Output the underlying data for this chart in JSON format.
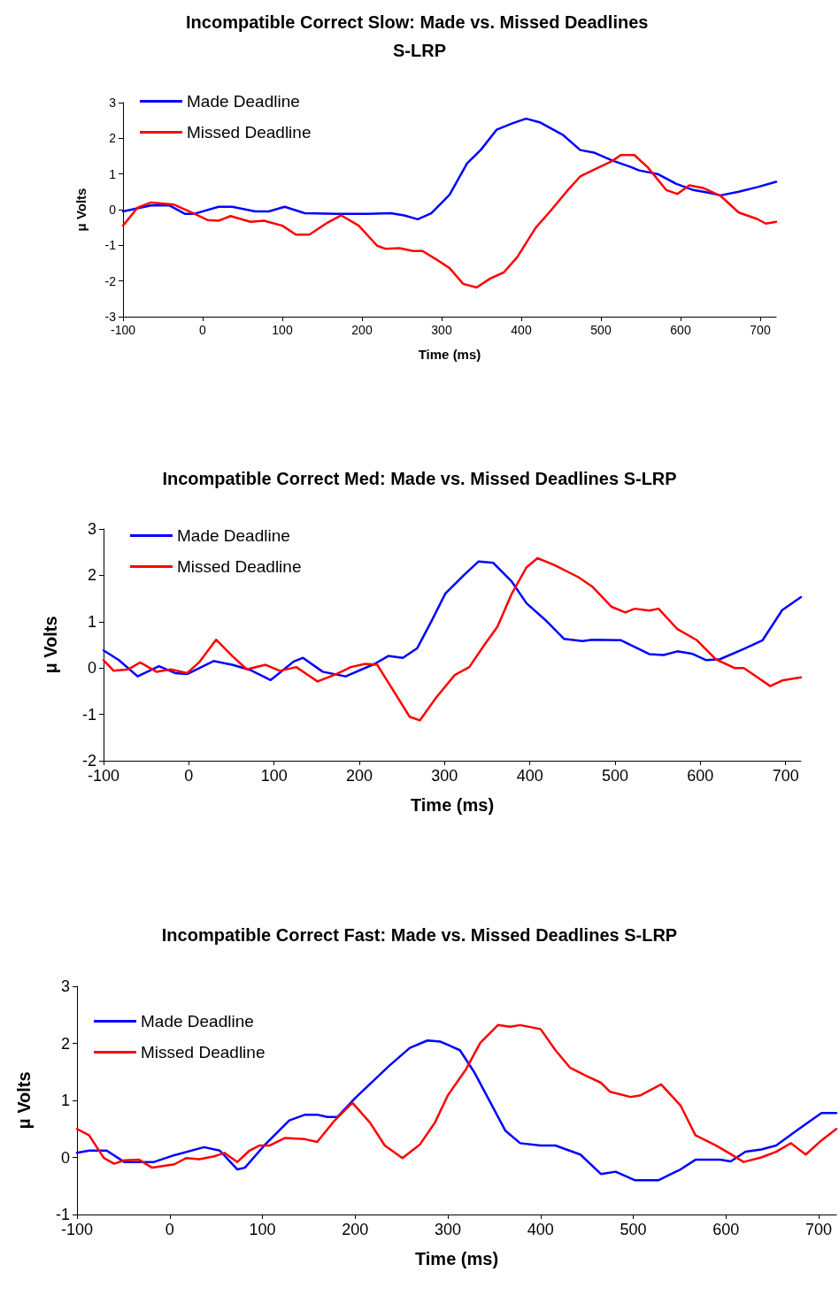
{
  "chart_data": [
    {
      "type": "line",
      "title": "Incompatible Correct Slow: Made vs. Missed Deadlines S-LRP",
      "xlabel": "Time (ms)",
      "ylabel": "μ Volts",
      "xlim": [
        -100,
        720
      ],
      "xticks": [
        -100,
        0,
        100,
        200,
        300,
        400,
        500,
        600,
        700
      ],
      "ylim": [
        -3,
        3
      ],
      "yticks": [
        -3,
        -2,
        -1,
        0,
        1,
        2,
        3
      ],
      "grid": false,
      "legend": "top left",
      "marker": "none",
      "line_style": "solid",
      "series": [
        {
          "name": "Made Deadline",
          "color": "#0000ff",
          "x": [
            -100,
            -65,
            -42,
            -22,
            -11,
            20,
            37,
            66,
            83,
            103,
            128,
            168,
            208,
            236,
            253,
            270,
            287,
            310,
            332,
            349,
            369,
            389,
            406,
            423,
            452,
            474,
            491,
            514,
            537,
            548,
            571,
            594,
            616,
            639,
            650,
            673,
            696,
            720
          ],
          "values": [
            -0.05,
            0.12,
            0.12,
            -0.12,
            -0.12,
            0.08,
            0.08,
            -0.05,
            -0.05,
            0.08,
            -0.1,
            -0.12,
            -0.12,
            -0.1,
            -0.16,
            -0.27,
            -0.1,
            0.42,
            1.3,
            1.67,
            2.24,
            2.42,
            2.55,
            2.45,
            2.1,
            1.67,
            1.6,
            1.38,
            1.2,
            1.1,
            1.0,
            0.73,
            0.55,
            0.46,
            0.4,
            0.5,
            0.63,
            0.78
          ]
        },
        {
          "name": "Missed Deadline",
          "color": "#ff0000",
          "x": [
            -100,
            -82,
            -65,
            -36,
            -14,
            6,
            20,
            35,
            60,
            77,
            100,
            117,
            134,
            157,
            174,
            196,
            219,
            230,
            247,
            264,
            276,
            293,
            310,
            327,
            344,
            361,
            378,
            395,
            418,
            435,
            457,
            474,
            497,
            514,
            525,
            542,
            559,
            582,
            596,
            611,
            628,
            650,
            673,
            696,
            707,
            720
          ],
          "values": [
            -0.45,
            0.05,
            0.2,
            0.14,
            -0.08,
            -0.29,
            -0.31,
            -0.18,
            -0.34,
            -0.31,
            -0.45,
            -0.7,
            -0.7,
            -0.36,
            -0.16,
            -0.45,
            -1.01,
            -1.1,
            -1.08,
            -1.16,
            -1.16,
            -1.39,
            -1.64,
            -2.08,
            -2.18,
            -1.93,
            -1.76,
            -1.33,
            -0.51,
            -0.08,
            0.51,
            0.93,
            1.18,
            1.36,
            1.53,
            1.53,
            1.18,
            0.55,
            0.44,
            0.68,
            0.61,
            0.39,
            -0.08,
            -0.26,
            -0.39,
            -0.34
          ]
        }
      ]
    },
    {
      "type": "line",
      "title": "Incompatible Correct Med: Made vs. Missed Deadlines S-LRP",
      "xlabel": "Time (ms)",
      "ylabel": "μ Volts",
      "xlim": [
        -100,
        718
      ],
      "xticks": [
        -100,
        0,
        100,
        200,
        300,
        400,
        500,
        600,
        700
      ],
      "ylim": [
        -2,
        3
      ],
      "yticks": [
        -2,
        -1,
        0,
        1,
        2,
        3
      ],
      "grid": false,
      "legend": "top left",
      "marker": "none",
      "line_style": "solid",
      "series": [
        {
          "name": "Made Deadline",
          "color": "#0000ff",
          "x": [
            -100,
            -82,
            -60,
            -35,
            -16,
            -2,
            29,
            51,
            73,
            96,
            123,
            134,
            157,
            184,
            218,
            234,
            251,
            268,
            284,
            301,
            323,
            340,
            357,
            379,
            396,
            418,
            440,
            462,
            473,
            507,
            540,
            557,
            573,
            590,
            607,
            623,
            651,
            673,
            696,
            718
          ],
          "values": [
            0.38,
            0.17,
            -0.18,
            0.04,
            -0.11,
            -0.13,
            0.15,
            0.07,
            -0.05,
            -0.26,
            0.14,
            0.22,
            -0.08,
            -0.18,
            0.09,
            0.26,
            0.22,
            0.43,
            0.99,
            1.61,
            2.01,
            2.3,
            2.27,
            1.86,
            1.4,
            1.04,
            0.63,
            0.58,
            0.61,
            0.6,
            0.3,
            0.28,
            0.36,
            0.31,
            0.17,
            0.19,
            0.41,
            0.6,
            1.25,
            1.53
          ]
        },
        {
          "name": "Missed Deadline",
          "color": "#ff0000",
          "x": [
            -100,
            -88,
            -71,
            -57,
            -38,
            -21,
            -2,
            12,
            32,
            51,
            68,
            90,
            107,
            126,
            151,
            173,
            190,
            207,
            221,
            240,
            259,
            271,
            290,
            312,
            329,
            346,
            362,
            379,
            396,
            409,
            429,
            457,
            473,
            496,
            512,
            523,
            540,
            551,
            573,
            596,
            618,
            640,
            651,
            682,
            696,
            718
          ],
          "values": [
            0.17,
            -0.06,
            -0.03,
            0.12,
            -0.08,
            -0.03,
            -0.11,
            0.12,
            0.61,
            0.26,
            -0.03,
            0.07,
            -0.06,
            0.02,
            -0.29,
            -0.13,
            0.02,
            0.09,
            0.07,
            -0.49,
            -1.05,
            -1.13,
            -0.64,
            -0.15,
            0.02,
            0.48,
            0.89,
            1.61,
            2.17,
            2.37,
            2.22,
            1.96,
            1.76,
            1.32,
            1.2,
            1.28,
            1.24,
            1.28,
            0.84,
            0.6,
            0.19,
            0,
            0,
            -0.39,
            -0.27,
            -0.2
          ]
        }
      ]
    },
    {
      "type": "line",
      "title": "Incompatible Correct Fast: Made vs. Missed Deadlines S-LRP",
      "xlabel": "Time (ms)",
      "ylabel": "μ Volts",
      "xlim": [
        -100,
        719
      ],
      "xticks": [
        -100,
        0,
        100,
        200,
        300,
        400,
        500,
        600,
        700
      ],
      "ylim": [
        -1,
        3
      ],
      "yticks": [
        -1,
        0,
        1,
        2,
        3
      ],
      "grid": false,
      "legend": "top left",
      "marker": "none",
      "line_style": "solid",
      "series": [
        {
          "name": "Made Deadline",
          "color": "#0000ff",
          "x": [
            -100,
            -87,
            -68,
            -49,
            -17,
            5,
            37,
            54,
            73,
            81,
            102,
            129,
            146,
            159,
            170,
            181,
            200,
            237,
            259,
            278,
            292,
            313,
            329,
            346,
            362,
            378,
            400,
            416,
            443,
            465,
            481,
            502,
            527,
            551,
            567,
            594,
            605,
            621,
            638,
            654,
            676,
            703,
            719
          ],
          "values": [
            0.08,
            0.12,
            0.12,
            -0.08,
            -0.08,
            0.04,
            0.18,
            0.12,
            -0.21,
            -0.18,
            0.21,
            0.65,
            0.75,
            0.75,
            0.71,
            0.71,
            1.04,
            1.61,
            1.92,
            2.05,
            2.03,
            1.88,
            1.48,
            0.96,
            0.47,
            0.25,
            0.21,
            0.21,
            0.05,
            -0.29,
            -0.25,
            -0.4,
            -0.4,
            -0.21,
            -0.04,
            -0.04,
            -0.07,
            0.1,
            0.14,
            0.21,
            0.47,
            0.78,
            0.78
          ]
        },
        {
          "name": "Missed Deadline",
          "color": "#ff0000",
          "x": [
            -100,
            -87,
            -71,
            -60,
            -49,
            -33,
            -19,
            5,
            18,
            32,
            48,
            59,
            73,
            86,
            97,
            108,
            124,
            146,
            159,
            178,
            197,
            216,
            232,
            251,
            270,
            286,
            300,
            319,
            335,
            354,
            367,
            378,
            400,
            416,
            432,
            448,
            465,
            475,
            497,
            508,
            530,
            551,
            567,
            589,
            603,
            619,
            638,
            654,
            670,
            686,
            703,
            719
          ],
          "values": [
            0.5,
            0.39,
            -0.01,
            -0.11,
            -0.05,
            -0.04,
            -0.18,
            -0.12,
            -0.01,
            -0.03,
            0.02,
            0.08,
            -0.08,
            0.12,
            0.21,
            0.21,
            0.34,
            0.32,
            0.27,
            0.65,
            0.96,
            0.61,
            0.21,
            -0.01,
            0.23,
            0.61,
            1.09,
            1.53,
            2.01,
            2.32,
            2.29,
            2.32,
            2.25,
            1.88,
            1.57,
            1.44,
            1.31,
            1.15,
            1.06,
            1.09,
            1.28,
            0.91,
            0.39,
            0.21,
            0.08,
            -0.08,
            0,
            0.1,
            0.25,
            0.05,
            0.3,
            0.5
          ]
        }
      ]
    }
  ]
}
